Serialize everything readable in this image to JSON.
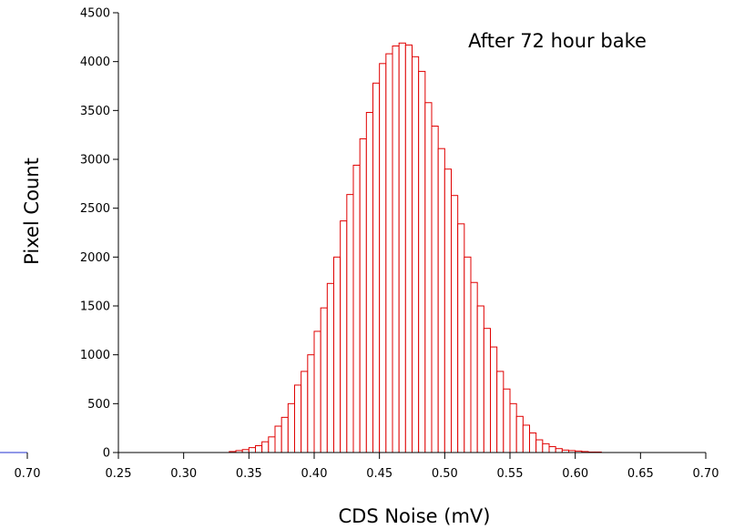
{
  "chart_data": {
    "type": "bar",
    "title": "",
    "annotation": "After 72 hour bake",
    "xlabel": "CDS Noise (mV)",
    "ylabel": "Pixel Count",
    "xlim": [
      0.25,
      0.7
    ],
    "ylim": [
      0,
      4500
    ],
    "x_ticks": [
      "0.25",
      "0.30",
      "0.35",
      "0.40",
      "0.45",
      "0.50",
      "0.55",
      "0.60",
      "0.65",
      "0.70"
    ],
    "y_ticks": [
      "0",
      "500",
      "1000",
      "1500",
      "2000",
      "2500",
      "3000",
      "3500",
      "4000",
      "4500"
    ],
    "left_fragment": {
      "tick_label": "0.70",
      "line_color": "#2030d0"
    },
    "bar_color": "#e00000",
    "bin_width": 0.005,
    "bin_start": 0.33,
    "values": [
      0,
      10,
      20,
      30,
      50,
      70,
      110,
      160,
      270,
      360,
      500,
      690,
      830,
      1000,
      1240,
      1480,
      1730,
      2000,
      2370,
      2640,
      2940,
      3210,
      3480,
      3780,
      3980,
      4080,
      4160,
      4190,
      4170,
      4050,
      3900,
      3580,
      3340,
      3110,
      2900,
      2630,
      2340,
      2000,
      1740,
      1500,
      1270,
      1080,
      830,
      650,
      500,
      370,
      280,
      200,
      130,
      90,
      60,
      40,
      25,
      20,
      15,
      10,
      5,
      5,
      0
    ]
  }
}
